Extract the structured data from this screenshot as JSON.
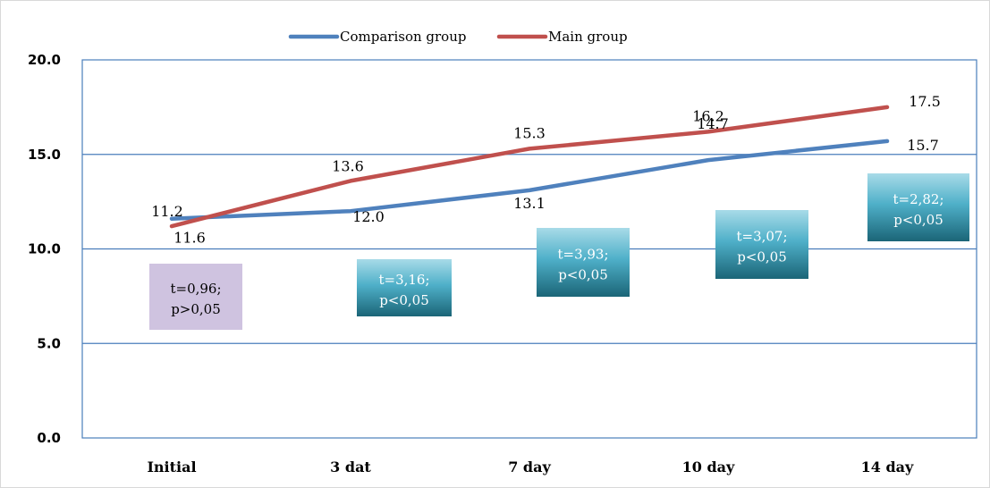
{
  "chart_data": {
    "type": "line",
    "title": "",
    "xlabel": "",
    "ylabel": "",
    "categories": [
      "Initial",
      "3 dat",
      "7 day",
      "10 day",
      "14 day"
    ],
    "ylim": [
      0,
      20
    ],
    "yticks": [
      "0.0",
      "5.0",
      "10.0",
      "15.0",
      "20.0"
    ],
    "grid": true,
    "legend_position": "top-center",
    "series": [
      {
        "name": "Comparison group",
        "color": "#4f81bd",
        "values": [
          11.6,
          12.0,
          13.1,
          14.7,
          15.7
        ],
        "labels": [
          "11.6",
          "12.0",
          "13.1",
          "14.7",
          "15.7"
        ]
      },
      {
        "name": "Main group",
        "color": "#c0504d",
        "values": [
          11.2,
          13.6,
          15.3,
          16.2,
          17.5
        ],
        "labels": [
          "11.2",
          "13.6",
          "15.3",
          "16.2",
          "17.5"
        ]
      }
    ],
    "annotations": [
      {
        "category": "Initial",
        "line1": "t=0,96;",
        "line2": "p>0,05",
        "style": "lavender"
      },
      {
        "category": "3 dat",
        "line1": "t=3,16;",
        "line2": "p<0,05",
        "style": "teal"
      },
      {
        "category": "7 day",
        "line1": "t=3,93;",
        "line2": "p<0,05",
        "style": "teal"
      },
      {
        "category": "10 day",
        "line1": "t=3,07;",
        "line2": "p<0,05",
        "style": "teal"
      },
      {
        "category": "14 day",
        "line1": "t=2,82;",
        "line2": "p<0,05",
        "style": "teal"
      }
    ]
  }
}
